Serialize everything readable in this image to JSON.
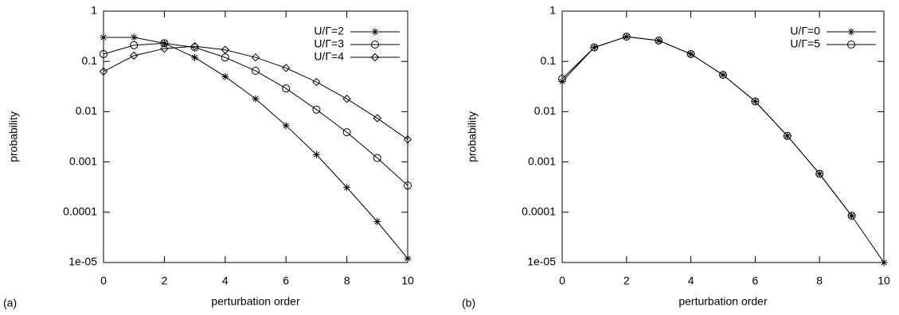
{
  "chart_data": [
    {
      "type": "line",
      "panel_label": "(a)",
      "x_label": "perturbation order",
      "y_label": "probability",
      "x": [
        0,
        1,
        2,
        3,
        4,
        5,
        6,
        7,
        8,
        9,
        10
      ],
      "xlim": [
        0,
        10
      ],
      "xticks": [
        0,
        2,
        4,
        6,
        8,
        10
      ],
      "ylim": [
        1e-05,
        1
      ],
      "yticks": [
        1,
        0.1,
        0.01,
        0.001,
        0.0001,
        {
          "value": 1e-05,
          "label": "1e-05"
        }
      ],
      "log_y": true,
      "legend": "upper right",
      "series": [
        {
          "name": "U/Γ=2",
          "color": "#000000",
          "marker": "star",
          "values": [
            0.3,
            0.3,
            0.23,
            0.12,
            0.05,
            0.018,
            0.0053,
            0.0014,
            0.00031,
            6.5e-05,
            1.2e-05
          ]
        },
        {
          "name": "U/Γ=3",
          "color": "#000000",
          "marker": "circle",
          "values": [
            0.14,
            0.21,
            0.23,
            0.19,
            0.12,
            0.065,
            0.029,
            0.011,
            0.0039,
            0.0012,
            0.00034
          ]
        },
        {
          "name": "U/Γ=4",
          "color": "#000000",
          "marker": "diamond",
          "values": [
            0.063,
            0.13,
            0.18,
            0.2,
            0.17,
            0.12,
            0.074,
            0.039,
            0.018,
            0.0074,
            0.0028
          ]
        }
      ]
    },
    {
      "type": "line",
      "panel_label": "(b)",
      "x_label": "perturbation order",
      "y_label": "probability",
      "x": [
        0,
        1,
        2,
        3,
        4,
        5,
        6,
        7,
        8,
        9,
        10
      ],
      "xlim": [
        0,
        10
      ],
      "xticks": [
        0,
        2,
        4,
        6,
        8,
        10
      ],
      "ylim": [
        1e-05,
        1
      ],
      "yticks": [
        1,
        0.1,
        0.01,
        0.001,
        0.0001,
        {
          "value": 1e-05,
          "label": "1e-05"
        }
      ],
      "log_y": true,
      "legend": "upper right",
      "series": [
        {
          "name": "U/Γ=0",
          "color": "#000000",
          "marker": "star",
          "values": [
            0.04,
            0.19,
            0.31,
            0.26,
            0.14,
            0.054,
            0.016,
            0.0033,
            0.00058,
            8.5e-05,
            1e-05
          ]
        },
        {
          "name": "U/Γ=5",
          "color": "#000000",
          "marker": "circle",
          "values": [
            0.045,
            0.19,
            0.31,
            0.26,
            0.14,
            0.054,
            0.016,
            0.0033,
            0.00058,
            8.5e-05,
            null
          ]
        }
      ]
    }
  ]
}
